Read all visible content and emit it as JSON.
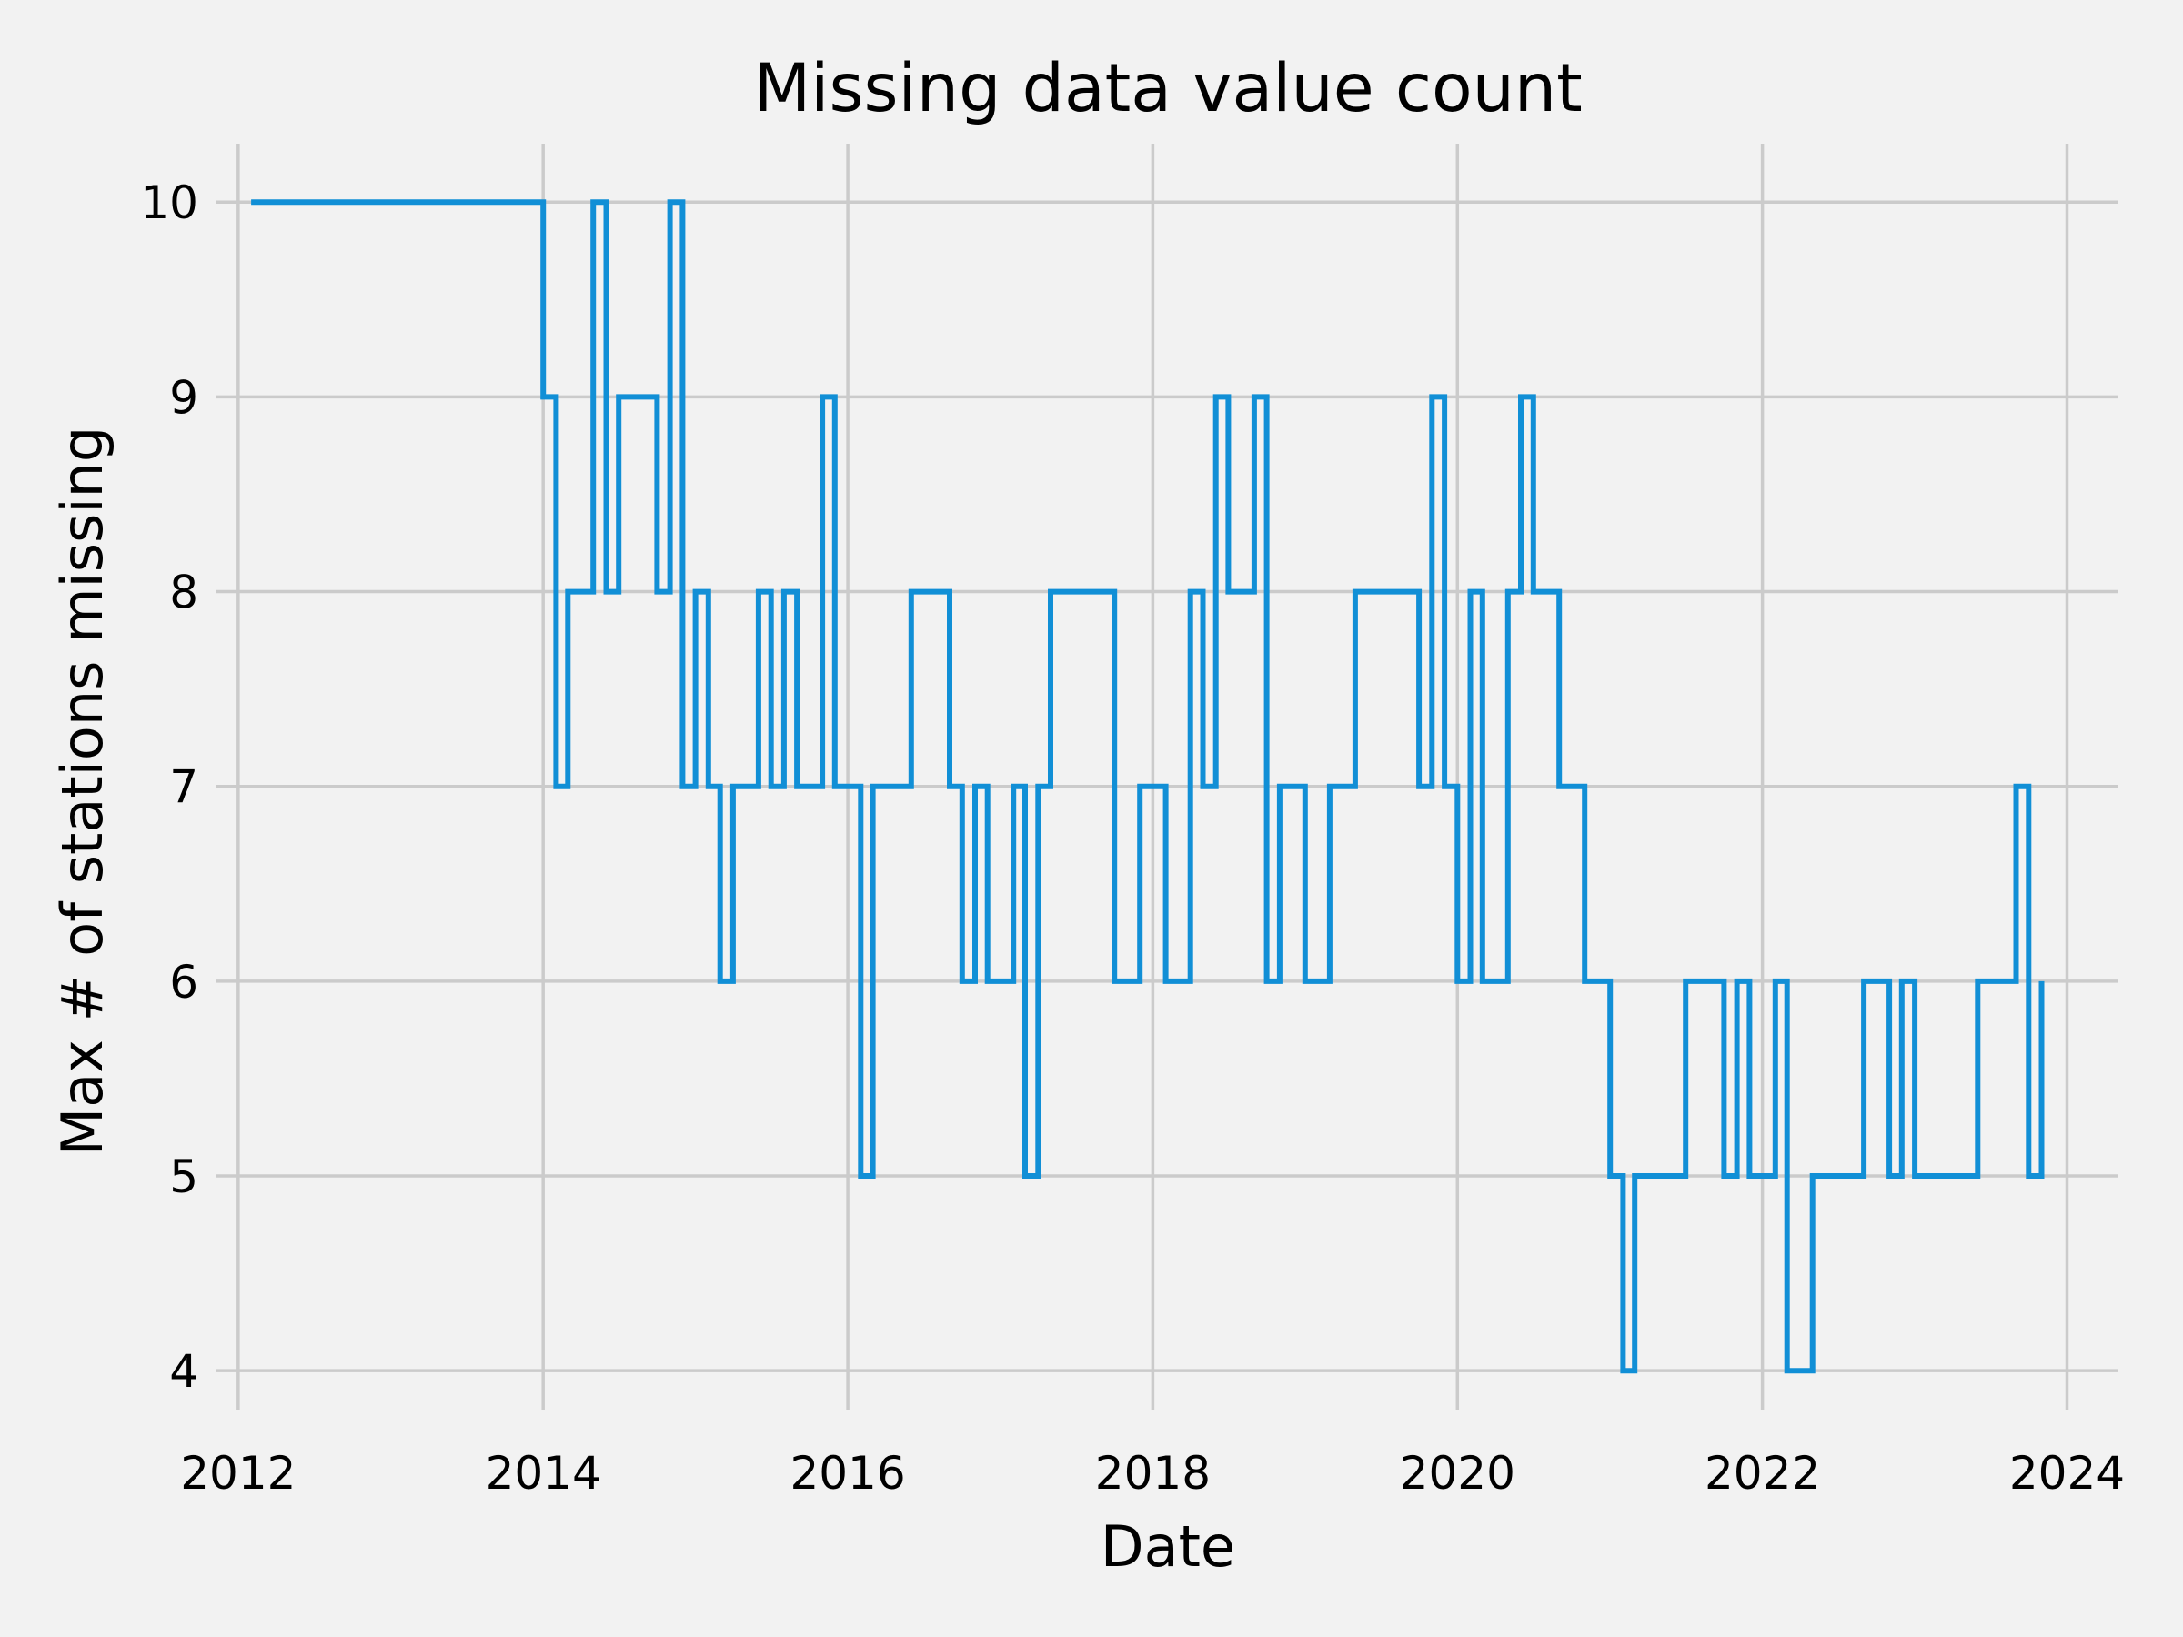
{
  "chart_data": {
    "type": "line",
    "drawstyle": "steps-post",
    "title": "Missing data value count",
    "xlabel": "Date",
    "ylabel": "Max # of stations missing",
    "xlim": [
      "2011-11-10",
      "2024-05-01"
    ],
    "ylim": [
      3.8,
      10.3
    ],
    "x_ticks": [
      {
        "date": "2012-01-01",
        "label": "2012"
      },
      {
        "date": "2014-01-01",
        "label": "2014"
      },
      {
        "date": "2016-01-01",
        "label": "2016"
      },
      {
        "date": "2018-01-01",
        "label": "2018"
      },
      {
        "date": "2020-01-01",
        "label": "2020"
      },
      {
        "date": "2022-01-01",
        "label": "2022"
      },
      {
        "date": "2024-01-01",
        "label": "2024"
      }
    ],
    "y_ticks": [
      4,
      5,
      6,
      7,
      8,
      9,
      10
    ],
    "grid": true,
    "legend": "none",
    "colors": {
      "background": "#f2f2f2",
      "grid": "#cbcbcb",
      "series": "#118fd6"
    },
    "series": [
      {
        "color": "#118fd6",
        "x": [
          "2012-02-01",
          "2014-01-01",
          "2014-02-01",
          "2014-03-01",
          "2014-04-01",
          "2014-05-01",
          "2014-06-01",
          "2014-07-01",
          "2014-08-01",
          "2014-09-01",
          "2014-10-01",
          "2014-11-01",
          "2014-12-01",
          "2015-01-01",
          "2015-02-01",
          "2015-03-01",
          "2015-04-01",
          "2015-05-01",
          "2015-06-01",
          "2015-07-01",
          "2015-08-01",
          "2015-09-01",
          "2015-10-01",
          "2015-11-01",
          "2015-12-01",
          "2016-01-01",
          "2016-02-01",
          "2016-03-01",
          "2016-04-01",
          "2016-05-01",
          "2016-06-01",
          "2016-07-01",
          "2016-08-01",
          "2016-09-01",
          "2016-10-01",
          "2016-11-01",
          "2016-12-01",
          "2017-01-01",
          "2017-02-01",
          "2017-03-01",
          "2017-04-01",
          "2017-05-01",
          "2017-06-01",
          "2017-07-01",
          "2017-08-01",
          "2017-09-01",
          "2017-10-01",
          "2017-11-01",
          "2017-12-01",
          "2018-01-01",
          "2018-02-01",
          "2018-03-01",
          "2018-04-01",
          "2018-05-01",
          "2018-06-01",
          "2018-07-01",
          "2018-08-01",
          "2018-09-01",
          "2018-10-01",
          "2018-11-01",
          "2018-12-01",
          "2019-01-01",
          "2019-02-01",
          "2019-03-01",
          "2019-04-01",
          "2019-05-01",
          "2019-06-01",
          "2019-07-01",
          "2019-08-01",
          "2019-09-01",
          "2019-10-01",
          "2019-11-01",
          "2019-12-01",
          "2020-01-01",
          "2020-02-01",
          "2020-03-01",
          "2020-04-01",
          "2020-05-01",
          "2020-06-01",
          "2020-07-01",
          "2020-08-01",
          "2020-09-01",
          "2020-10-01",
          "2020-11-01",
          "2020-12-01",
          "2021-01-01",
          "2021-02-01",
          "2021-03-01",
          "2021-04-01",
          "2021-05-01",
          "2021-06-01",
          "2021-07-01",
          "2021-08-01",
          "2021-09-01",
          "2021-10-01",
          "2021-11-01",
          "2021-12-01",
          "2022-01-01",
          "2022-02-01",
          "2022-03-01",
          "2022-04-01",
          "2022-05-01",
          "2022-06-01",
          "2022-07-01",
          "2022-08-01",
          "2022-09-01",
          "2022-10-01",
          "2022-11-01",
          "2022-12-01",
          "2023-01-01",
          "2023-02-01",
          "2023-03-01",
          "2023-04-01",
          "2023-05-01",
          "2023-06-01",
          "2023-07-01",
          "2023-08-01",
          "2023-09-01",
          "2023-10-01",
          "2023-11-01"
        ],
        "values": [
          10,
          9,
          7,
          8,
          8,
          10,
          8,
          9,
          9,
          9,
          8,
          10,
          7,
          8,
          7,
          6,
          7,
          7,
          8,
          7,
          8,
          7,
          7,
          9,
          7,
          7,
          5,
          7,
          7,
          7,
          8,
          8,
          8,
          7,
          6,
          7,
          6,
          6,
          7,
          5,
          7,
          8,
          8,
          8,
          8,
          8,
          6,
          6,
          7,
          7,
          6,
          6,
          8,
          7,
          9,
          8,
          8,
          9,
          6,
          7,
          7,
          6,
          6,
          7,
          7,
          8,
          8,
          8,
          8,
          8,
          7,
          9,
          7,
          6,
          8,
          6,
          6,
          8,
          9,
          8,
          8,
          7,
          7,
          6,
          6,
          5,
          4,
          5,
          5,
          5,
          5,
          6,
          6,
          6,
          5,
          6,
          5,
          5,
          6,
          4,
          4,
          5,
          5,
          5,
          5,
          6,
          6,
          5,
          6,
          5,
          5,
          5,
          5,
          5,
          6,
          6,
          6,
          7,
          5,
          6
        ]
      }
    ]
  }
}
